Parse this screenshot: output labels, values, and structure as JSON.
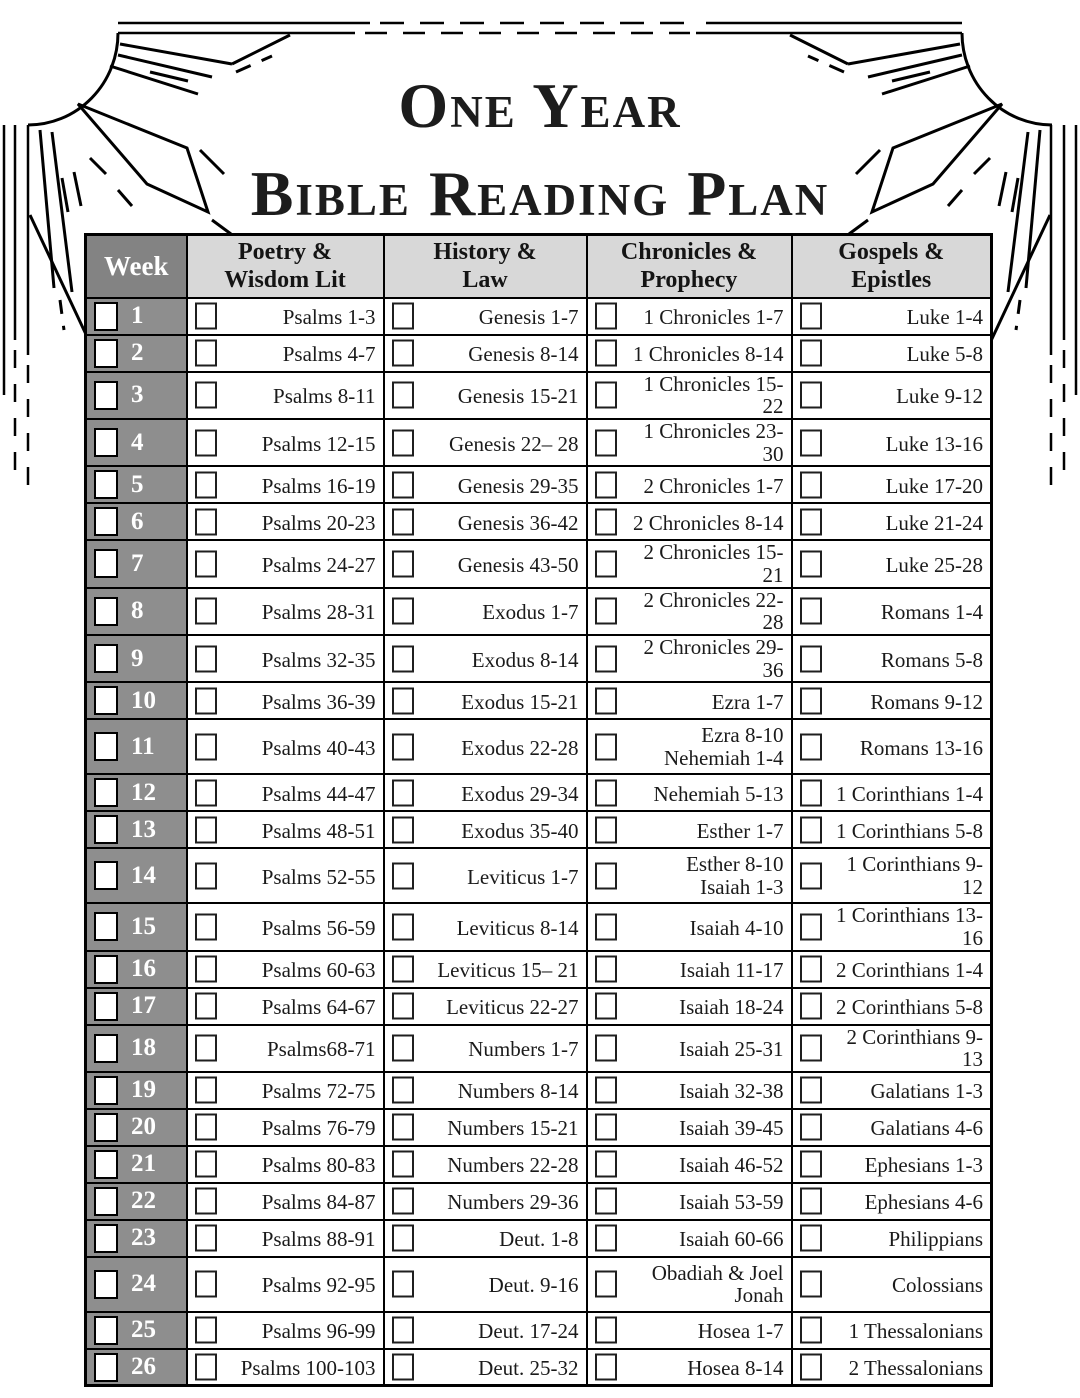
{
  "page": {
    "title_line1": "One Year",
    "title_line2": "Bible Reading Plan"
  },
  "colors": {
    "week_header_bg": "#838383",
    "week_cell_bg": "#8e8e8e",
    "column_header_bg": "#d8d8d8",
    "table_border": "#000000",
    "week_number_text": "#ffffff"
  },
  "icons": {
    "top_left_corner": "sun-rays-icon",
    "top_right_corner": "sun-rays-icon"
  },
  "table": {
    "checkboxes_checked": false,
    "headers": [
      {
        "line1": "Week",
        "line2": ""
      },
      {
        "line1": "Poetry &",
        "line2": "Wisdom Lit"
      },
      {
        "line1": "History &",
        "line2": "Law"
      },
      {
        "line1": "Chronicles &",
        "line2": "Prophecy"
      },
      {
        "line1": "Gospels &",
        "line2": "Epistles"
      }
    ],
    "rows": [
      {
        "week": "1",
        "poetry": "Psalms 1-3",
        "history": "Genesis 1-7",
        "prophecy": "1 Chronicles  1-7",
        "gospels": "Luke 1-4"
      },
      {
        "week": "2",
        "poetry": "Psalms 4-7",
        "history": "Genesis 8-14",
        "prophecy": "1 Chronicles 8-14",
        "gospels": "Luke 5-8"
      },
      {
        "week": "3",
        "poetry": "Psalms 8-11",
        "history": "Genesis 15-21",
        "prophecy": "1 Chronicles 15-22",
        "gospels": "Luke 9-12"
      },
      {
        "week": "4",
        "poetry": "Psalms 12-15",
        "history": "Genesis 22– 28",
        "prophecy": "1 Chronicles 23-30",
        "gospels": "Luke 13-16"
      },
      {
        "week": "5",
        "poetry": "Psalms 16-19",
        "history": "Genesis 29-35",
        "prophecy": "2 Chronicles 1-7",
        "gospels": "Luke 17-20"
      },
      {
        "week": "6",
        "poetry": "Psalms 20-23",
        "history": "Genesis 36-42",
        "prophecy": "2 Chronicles 8-14",
        "gospels": "Luke 21-24"
      },
      {
        "week": "7",
        "poetry": "Psalms 24-27",
        "history": "Genesis 43-50",
        "prophecy": "2 Chronicles 15-21",
        "gospels": "Luke 25-28"
      },
      {
        "week": "8",
        "poetry": "Psalms 28-31",
        "history": "Exodus  1-7",
        "prophecy": "2 Chronicles 22-28",
        "gospels": "Romans 1-4"
      },
      {
        "week": "9",
        "poetry": "Psalms 32-35",
        "history": "Exodus  8-14",
        "prophecy": "2 Chronicles 29-36",
        "gospels": "Romans 5-8"
      },
      {
        "week": "10",
        "poetry": "Psalms 36-39",
        "history": "Exodus 15-21",
        "prophecy": "Ezra 1-7",
        "gospels": "Romans 9-12"
      },
      {
        "week": "11",
        "poetry": "Psalms 40-43",
        "history": "Exodus 22-28",
        "prophecy": "Ezra 8-10\nNehemiah 1-4",
        "gospels": "Romans 13-16"
      },
      {
        "week": "12",
        "poetry": "Psalms 44-47",
        "history": "Exodus 29-34",
        "prophecy": "Nehemiah 5-13",
        "gospels": "1 Corinthians 1-4"
      },
      {
        "week": "13",
        "poetry": "Psalms 48-51",
        "history": "Exodus 35-40",
        "prophecy": "Esther 1-7",
        "gospels": "1 Corinthians 5-8"
      },
      {
        "week": "14",
        "poetry": "Psalms 52-55",
        "history": "Leviticus 1-7",
        "prophecy": "Esther 8-10\nIsaiah 1-3",
        "gospels": "1 Corinthians 9-12"
      },
      {
        "week": "15",
        "poetry": "Psalms 56-59",
        "history": "Leviticus  8-14",
        "prophecy": "Isaiah 4-10",
        "gospels": "1 Corinthians 13-16"
      },
      {
        "week": "16",
        "poetry": "Psalms 60-63",
        "history": "Leviticus 15– 21",
        "prophecy": "Isaiah 11-17",
        "gospels": "2 Corinthians 1-4"
      },
      {
        "week": "17",
        "poetry": "Psalms 64-67",
        "history": "Leviticus 22-27",
        "prophecy": "Isaiah 18-24",
        "gospels": "2 Corinthians 5-8"
      },
      {
        "week": "18",
        "poetry": "Psalms68-71",
        "history": "Numbers 1-7",
        "prophecy": "Isaiah 25-31",
        "gospels": "2 Corinthians 9-13"
      },
      {
        "week": "19",
        "poetry": "Psalms 72-75",
        "history": "Numbers 8-14",
        "prophecy": "Isaiah 32-38",
        "gospels": "Galatians 1-3"
      },
      {
        "week": "20",
        "poetry": "Psalms 76-79",
        "history": "Numbers 15-21",
        "prophecy": "Isaiah 39-45",
        "gospels": "Galatians 4-6"
      },
      {
        "week": "21",
        "poetry": "Psalms 80-83",
        "history": "Numbers  22-28",
        "prophecy": "Isaiah 46-52",
        "gospels": "Ephesians 1-3"
      },
      {
        "week": "22",
        "poetry": "Psalms 84-87",
        "history": "Numbers  29-36",
        "prophecy": "Isaiah 53-59",
        "gospels": "Ephesians 4-6"
      },
      {
        "week": "23",
        "poetry": "Psalms 88-91",
        "history": "Deut. 1-8",
        "prophecy": "Isaiah 60-66",
        "gospels": "Philippians"
      },
      {
        "week": "24",
        "poetry": "Psalms 92-95",
        "history": "Deut. 9-16",
        "prophecy": "Obadiah & Joel\nJonah",
        "gospels": "Colossians"
      },
      {
        "week": "25",
        "poetry": "Psalms 96-99",
        "history": "Deut. 17-24",
        "prophecy": "Hosea 1-7",
        "gospels": "1 Thessalonians"
      },
      {
        "week": "26",
        "poetry": "Psalms 100-103",
        "history": "Deut. 25-32",
        "prophecy": "Hosea 8-14",
        "gospels": "2 Thessalonians"
      }
    ]
  }
}
